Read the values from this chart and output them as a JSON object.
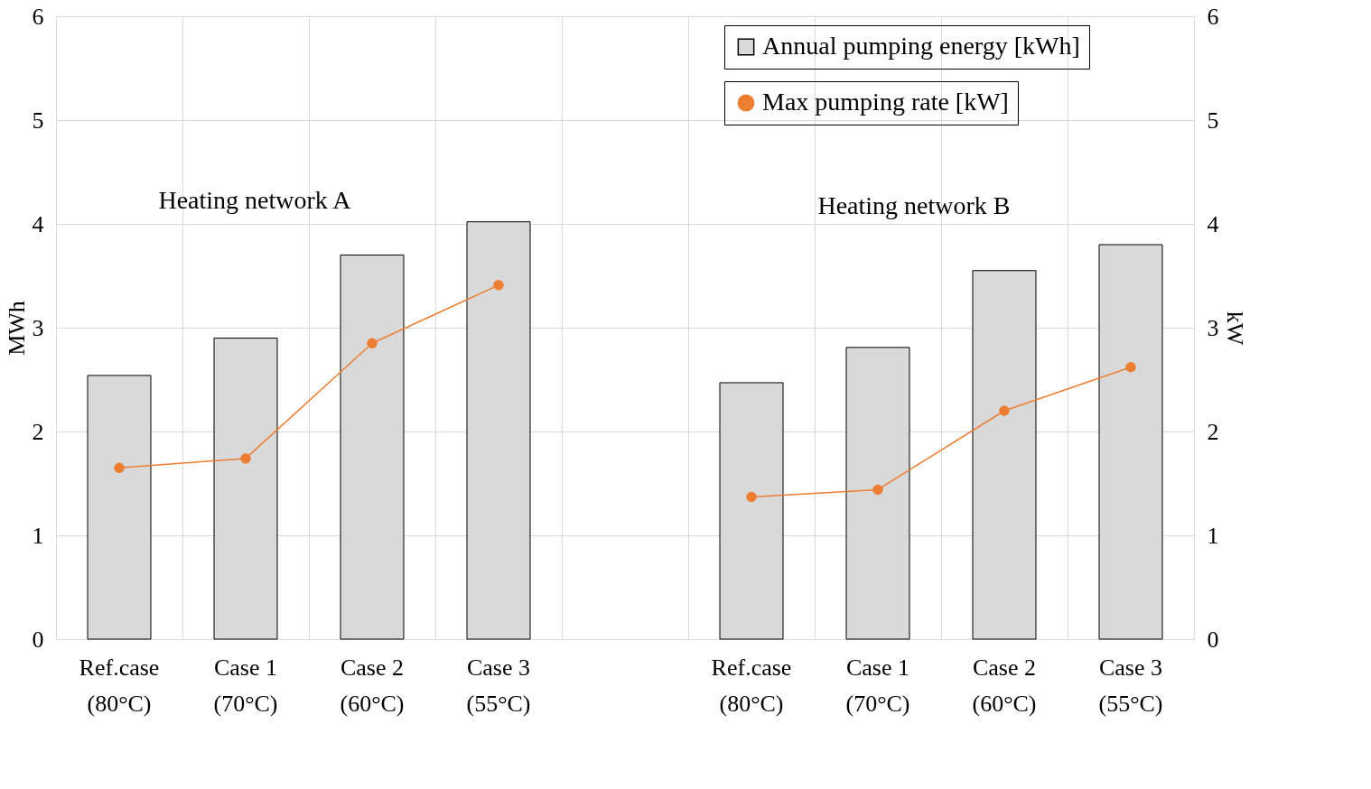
{
  "chart_data": {
    "type": "bar",
    "categories": [
      "Ref.case\n(80°C)",
      "Case 1\n(70°C)",
      "Case 2\n(60°C)",
      "Case 3\n(55°C)",
      null,
      "Ref.case\n(80°C)",
      "Case 1\n(70°C)",
      "Case 2\n(60°C)",
      "Case 3\n(55°C)"
    ],
    "series": [
      {
        "name": "Annual pumping energy [kWh]",
        "color": "#d9d9d9",
        "values": [
          2.54,
          2.9,
          3.7,
          4.02,
          null,
          2.47,
          2.81,
          3.55,
          3.8
        ]
      },
      {
        "name": "Max pumping rate [kW]",
        "type": "line",
        "axis": "y2",
        "color": "#ed7d31",
        "values": [
          1.65,
          1.74,
          2.85,
          3.41,
          null,
          1.37,
          1.44,
          2.2,
          2.62
        ]
      }
    ],
    "ylabel": "MWh",
    "y2label": "kW",
    "ylim": [
      0,
      6
    ],
    "yticks": [
      0,
      1,
      2,
      3,
      4,
      5,
      6
    ],
    "y2lim": [
      0,
      6
    ],
    "y2ticks": [
      0,
      1,
      2,
      3,
      4,
      5,
      6
    ],
    "annotations": [
      "Heating network A",
      "Heating network B"
    ],
    "grid": true,
    "legend": "top right",
    "marker": "circle",
    "line_style": "solid"
  }
}
